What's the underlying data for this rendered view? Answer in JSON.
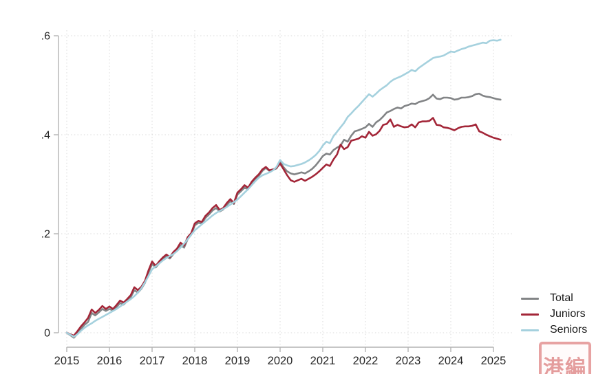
{
  "chart_data": {
    "type": "line",
    "title": "",
    "xlabel": "",
    "ylabel": "",
    "grid": "dotted",
    "legend_position": "bottom-right",
    "xlim": [
      2015,
      2025.25
    ],
    "ylim": [
      -0.03,
      0.62
    ],
    "x_ticks": [
      {
        "v": 2015,
        "label": "2015"
      },
      {
        "v": 2016,
        "label": "2016"
      },
      {
        "v": 2017,
        "label": "2017"
      },
      {
        "v": 2018,
        "label": "2018"
      },
      {
        "v": 2019,
        "label": "2019"
      },
      {
        "v": 2020,
        "label": "2020"
      },
      {
        "v": 2021,
        "label": "2021"
      },
      {
        "v": 2022,
        "label": "2022"
      },
      {
        "v": 2023,
        "label": "2023"
      },
      {
        "v": 2024,
        "label": "2024"
      },
      {
        "v": 2025,
        "label": "2025"
      }
    ],
    "y_ticks": [
      {
        "v": 0,
        "label": "0"
      },
      {
        "v": 0.2,
        "label": ".2"
      },
      {
        "v": 0.4,
        "label": ".4"
      },
      {
        "v": 0.6,
        "label": ".6"
      }
    ],
    "x_resolution": "monthly",
    "series": [
      {
        "name": "Total",
        "color": "#828486",
        "start": 2015,
        "step_years": 0.083333,
        "values": [
          0.0,
          -0.005,
          -0.01,
          -0.002,
          0.008,
          0.016,
          0.022,
          0.04,
          0.035,
          0.041,
          0.048,
          0.044,
          0.048,
          0.045,
          0.052,
          0.06,
          0.057,
          0.064,
          0.072,
          0.086,
          0.081,
          0.089,
          0.101,
          0.122,
          0.139,
          0.132,
          0.14,
          0.148,
          0.154,
          0.15,
          0.159,
          0.166,
          0.177,
          0.172,
          0.189,
          0.198,
          0.217,
          0.222,
          0.221,
          0.232,
          0.239,
          0.247,
          0.252,
          0.245,
          0.249,
          0.258,
          0.266,
          0.26,
          0.279,
          0.286,
          0.293,
          0.29,
          0.302,
          0.31,
          0.317,
          0.327,
          0.333,
          0.327,
          0.329,
          0.332,
          0.345,
          0.334,
          0.326,
          0.322,
          0.32,
          0.322,
          0.324,
          0.322,
          0.326,
          0.331,
          0.338,
          0.347,
          0.357,
          0.362,
          0.36,
          0.369,
          0.374,
          0.378,
          0.39,
          0.386,
          0.398,
          0.407,
          0.409,
          0.412,
          0.415,
          0.422,
          0.416,
          0.425,
          0.43,
          0.437,
          0.445,
          0.448,
          0.452,
          0.455,
          0.453,
          0.458,
          0.46,
          0.463,
          0.462,
          0.466,
          0.468,
          0.47,
          0.474,
          0.481,
          0.473,
          0.472,
          0.475,
          0.475,
          0.474,
          0.471,
          0.472,
          0.475,
          0.475,
          0.476,
          0.478,
          0.482,
          0.483,
          0.479,
          0.477,
          0.476,
          0.474,
          0.472,
          0.471
        ]
      },
      {
        "name": "Juniors",
        "color": "#a32638",
        "start": 2015,
        "step_years": 0.083333,
        "values": [
          0.0,
          -0.003,
          -0.006,
          0.003,
          0.013,
          0.021,
          0.03,
          0.047,
          0.04,
          0.046,
          0.054,
          0.048,
          0.053,
          0.048,
          0.056,
          0.065,
          0.061,
          0.068,
          0.076,
          0.092,
          0.086,
          0.093,
          0.105,
          0.126,
          0.144,
          0.135,
          0.144,
          0.152,
          0.158,
          0.153,
          0.163,
          0.17,
          0.182,
          0.176,
          0.193,
          0.201,
          0.221,
          0.226,
          0.224,
          0.236,
          0.243,
          0.252,
          0.258,
          0.248,
          0.252,
          0.262,
          0.27,
          0.262,
          0.283,
          0.29,
          0.298,
          0.293,
          0.305,
          0.313,
          0.32,
          0.33,
          0.335,
          0.328,
          0.33,
          0.333,
          0.342,
          0.33,
          0.318,
          0.308,
          0.305,
          0.308,
          0.311,
          0.307,
          0.311,
          0.315,
          0.32,
          0.326,
          0.333,
          0.34,
          0.337,
          0.35,
          0.36,
          0.38,
          0.371,
          0.375,
          0.388,
          0.39,
          0.392,
          0.397,
          0.394,
          0.406,
          0.398,
          0.401,
          0.408,
          0.42,
          0.422,
          0.431,
          0.416,
          0.42,
          0.417,
          0.415,
          0.416,
          0.421,
          0.415,
          0.425,
          0.427,
          0.427,
          0.428,
          0.434,
          0.42,
          0.419,
          0.415,
          0.414,
          0.412,
          0.409,
          0.413,
          0.416,
          0.417,
          0.417,
          0.418,
          0.421,
          0.407,
          0.404,
          0.4,
          0.397,
          0.394,
          0.392,
          0.39
        ]
      },
      {
        "name": "Seniors",
        "color": "#a5d1de",
        "start": 2015,
        "step_years": 0.083333,
        "values": [
          0.0,
          -0.004,
          -0.008,
          -0.003,
          0.004,
          0.01,
          0.015,
          0.019,
          0.024,
          0.028,
          0.032,
          0.036,
          0.04,
          0.044,
          0.048,
          0.053,
          0.058,
          0.063,
          0.068,
          0.074,
          0.081,
          0.09,
          0.102,
          0.115,
          0.128,
          0.134,
          0.14,
          0.146,
          0.151,
          0.155,
          0.159,
          0.165,
          0.172,
          0.18,
          0.189,
          0.198,
          0.207,
          0.213,
          0.219,
          0.225,
          0.231,
          0.237,
          0.242,
          0.246,
          0.25,
          0.254,
          0.259,
          0.264,
          0.269,
          0.276,
          0.283,
          0.29,
          0.298,
          0.306,
          0.313,
          0.318,
          0.321,
          0.324,
          0.328,
          0.335,
          0.349,
          0.341,
          0.338,
          0.336,
          0.337,
          0.339,
          0.341,
          0.344,
          0.348,
          0.353,
          0.359,
          0.367,
          0.378,
          0.386,
          0.383,
          0.397,
          0.406,
          0.415,
          0.424,
          0.436,
          0.443,
          0.451,
          0.458,
          0.466,
          0.474,
          0.482,
          0.477,
          0.483,
          0.49,
          0.495,
          0.5,
          0.507,
          0.512,
          0.515,
          0.518,
          0.522,
          0.526,
          0.531,
          0.528,
          0.535,
          0.54,
          0.545,
          0.55,
          0.555,
          0.557,
          0.558,
          0.56,
          0.564,
          0.568,
          0.567,
          0.57,
          0.573,
          0.575,
          0.578,
          0.58,
          0.582,
          0.584,
          0.586,
          0.585,
          0.59,
          0.591,
          0.59,
          0.592
        ]
      }
    ]
  },
  "watermark_seal": {
    "chars": "港編"
  },
  "colors": {
    "background": "#ffffff",
    "axis": "#b3b3b3",
    "grid": "#d9d9d9",
    "tick_text": "#262626",
    "seal": "#d45a5a"
  }
}
